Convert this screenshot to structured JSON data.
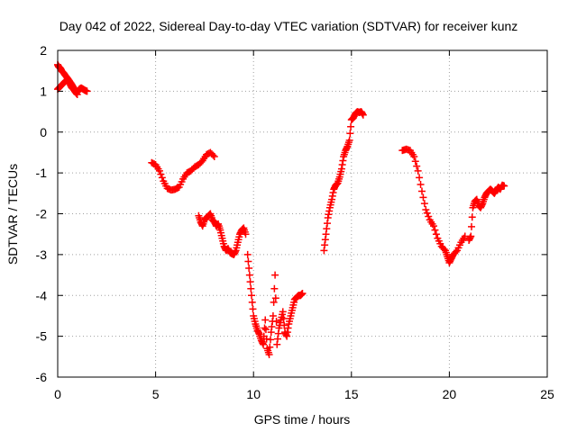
{
  "chart_data": {
    "type": "scatter",
    "title": "Day 042 of 2022, Sidereal Day-to-day VTEC variation (SDTVAR) for receiver kunz",
    "xlabel": "GPS time / hours",
    "ylabel": "SDTVAR / TECUs",
    "xlim": [
      0,
      25
    ],
    "ylim": [
      -6,
      2
    ],
    "xticks": [
      "0",
      "5",
      "10",
      "15",
      "20",
      "25"
    ],
    "yticks": [
      "2",
      "1",
      "0",
      "-1",
      "-2",
      "-3",
      "-4",
      "-5",
      "-6"
    ],
    "grid": true,
    "legend": "none",
    "marker": "plus",
    "color": "#ff0000",
    "segments": [
      {
        "x": [
          0.0,
          0.05,
          0.1,
          0.15,
          0.2,
          0.3,
          0.4,
          0.5,
          0.6,
          0.7,
          0.8,
          0.9,
          1.0,
          1.1,
          1.2,
          1.3,
          1.4,
          1.5
        ],
        "y": [
          1.65,
          1.6,
          1.58,
          1.55,
          1.5,
          1.45,
          1.38,
          1.32,
          1.25,
          1.18,
          1.1,
          1.02,
          0.98,
          1.05,
          1.08,
          1.05,
          1.02,
          1.0
        ]
      },
      {
        "x": [
          0.0,
          0.1,
          0.2,
          0.3,
          0.4,
          0.5,
          0.6,
          0.7,
          0.8,
          0.9,
          1.0
        ],
        "y": [
          1.05,
          1.1,
          1.15,
          1.2,
          1.25,
          1.28,
          1.2,
          1.1,
          1.05,
          0.98,
          0.92
        ]
      },
      {
        "x": [
          4.8,
          5.0,
          5.2,
          5.4,
          5.6,
          5.8,
          6.0,
          6.2,
          6.4,
          6.6,
          6.8,
          7.0,
          7.2,
          7.4,
          7.6,
          7.8,
          8.0
        ],
        "y": [
          -0.75,
          -0.8,
          -0.95,
          -1.2,
          -1.38,
          -1.42,
          -1.4,
          -1.35,
          -1.15,
          -1.0,
          -0.95,
          -0.85,
          -0.8,
          -0.7,
          -0.55,
          -0.5,
          -0.6
        ]
      },
      {
        "x": [
          7.2,
          7.3,
          7.4,
          7.5,
          7.6,
          7.7,
          7.8,
          7.9,
          8.0,
          8.1,
          8.2,
          8.3,
          8.4,
          8.5,
          8.6,
          8.7,
          8.8,
          8.9,
          9.0,
          9.1,
          9.2,
          9.3,
          9.4,
          9.5,
          9.6
        ],
        "y": [
          -2.05,
          -2.2,
          -2.3,
          -2.15,
          -2.1,
          -2.05,
          -2.0,
          -2.15,
          -2.2,
          -2.3,
          -2.25,
          -2.4,
          -2.6,
          -2.8,
          -2.9,
          -2.85,
          -2.95,
          -2.98,
          -3.0,
          -2.9,
          -2.7,
          -2.5,
          -2.4,
          -2.35,
          -2.5
        ]
      },
      {
        "x": [
          9.7,
          9.8,
          9.9,
          10.0,
          10.1,
          10.2,
          10.3,
          10.4,
          10.5,
          10.6,
          10.7,
          10.8,
          10.9,
          11.0,
          11.1,
          11.2,
          11.3,
          11.4,
          11.5,
          11.6,
          11.7,
          11.8,
          11.9,
          12.0,
          12.1,
          12.2,
          12.3,
          12.4,
          12.5
        ],
        "y": [
          -3.0,
          -3.5,
          -4.0,
          -4.5,
          -4.7,
          -4.85,
          -4.95,
          -5.1,
          -5.2,
          -4.6,
          -5.3,
          -5.45,
          -4.9,
          -4.5,
          -3.5,
          -5.2,
          -4.8,
          -4.6,
          -4.4,
          -4.9,
          -5.0,
          -4.7,
          -4.5,
          -4.3,
          -4.1,
          -4.05,
          -4.0,
          -4.0,
          -3.95
        ]
      },
      {
        "x": [
          13.6,
          13.7,
          13.8,
          13.9,
          14.0,
          14.1,
          14.2,
          14.3,
          14.4,
          14.5,
          14.6,
          14.7,
          14.8,
          14.9,
          15.0,
          15.1,
          15.2,
          15.3,
          15.4,
          15.5,
          15.6
        ],
        "y": [
          -2.9,
          -2.5,
          -2.1,
          -1.85,
          -1.65,
          -1.4,
          -1.3,
          -1.25,
          -1.1,
          -0.9,
          -0.6,
          -0.45,
          -0.35,
          -0.2,
          0.3,
          0.35,
          0.45,
          0.5,
          0.48,
          0.5,
          0.42
        ]
      },
      {
        "x": [
          17.6,
          17.8,
          18.0,
          18.2,
          18.4,
          18.6,
          18.8,
          19.0,
          19.2,
          19.4,
          19.6,
          19.8,
          19.9,
          20.0,
          20.1,
          20.2,
          20.4,
          20.6,
          20.8
        ],
        "y": [
          -0.45,
          -0.42,
          -0.45,
          -0.6,
          -0.95,
          -1.45,
          -1.9,
          -2.15,
          -2.3,
          -2.6,
          -2.8,
          -2.9,
          -3.05,
          -3.2,
          -3.1,
          -3.0,
          -2.9,
          -2.7,
          -2.55
        ]
      },
      {
        "x": [
          21.0,
          21.1,
          21.2,
          21.3,
          21.4,
          21.5,
          21.6,
          21.7,
          21.8,
          21.9,
          22.0,
          22.1,
          22.2,
          22.3,
          22.4,
          22.5,
          22.6,
          22.7,
          22.8
        ],
        "y": [
          -2.65,
          -2.55,
          -1.85,
          -1.7,
          -1.65,
          -1.8,
          -1.85,
          -1.75,
          -1.6,
          -1.5,
          -1.45,
          -1.4,
          -1.45,
          -1.5,
          -1.42,
          -1.35,
          -1.4,
          -1.3,
          -1.32
        ]
      }
    ]
  }
}
